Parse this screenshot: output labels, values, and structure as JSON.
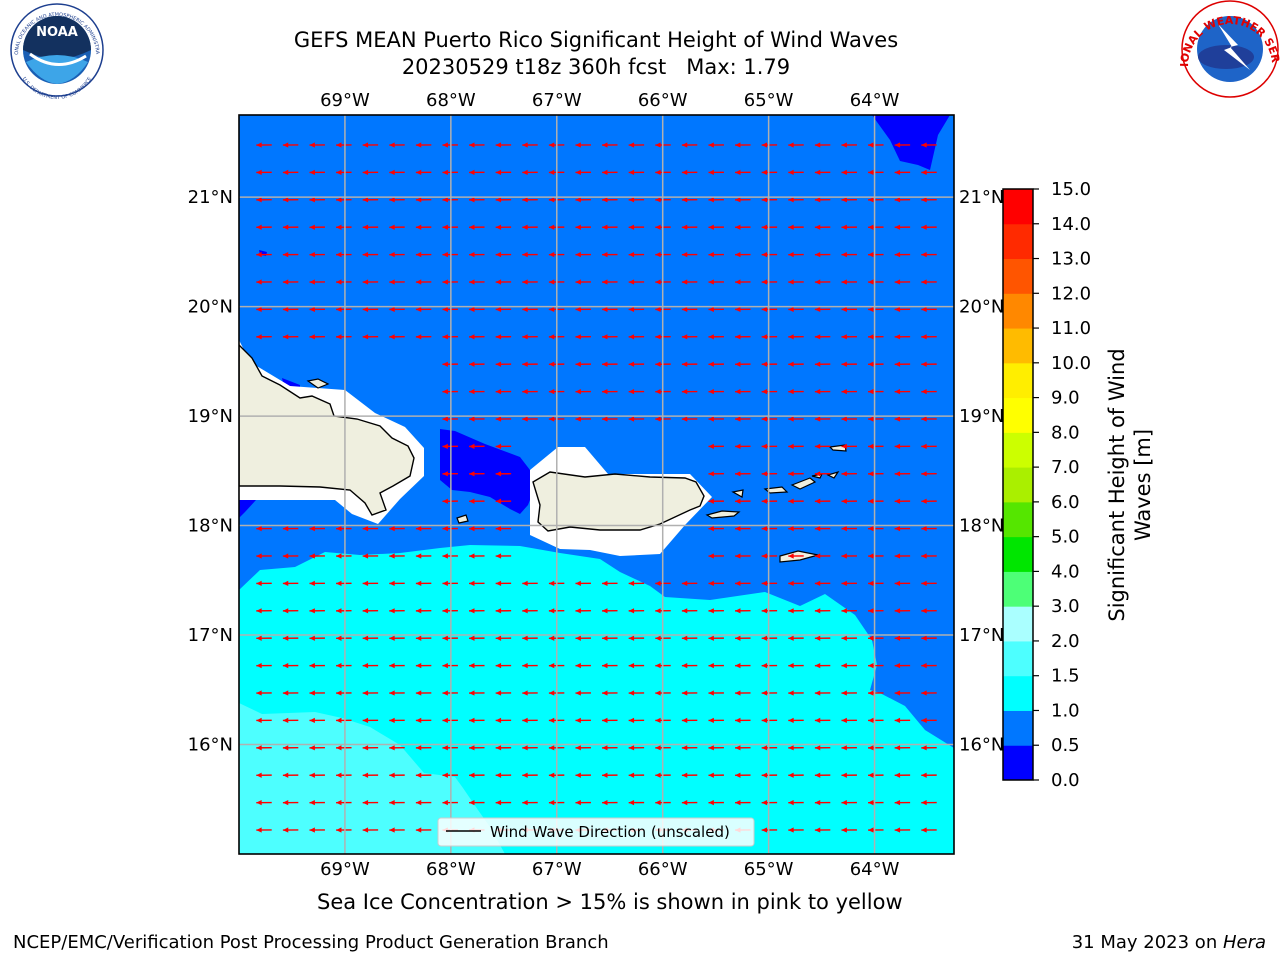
{
  "title": {
    "line1": "GEFS MEAN Puerto Rico Significant Height of Wind Waves",
    "line2": "20230529 t18z 360h fcst   Max: 1.79"
  },
  "map": {
    "lon_range": [
      -70.0,
      -63.25
    ],
    "lat_range": [
      15.0,
      21.75
    ],
    "lon_ticks": [
      {
        "value": -69,
        "label": "69°W"
      },
      {
        "value": -68,
        "label": "68°W"
      },
      {
        "value": -67,
        "label": "67°W"
      },
      {
        "value": -66,
        "label": "66°W"
      },
      {
        "value": -65,
        "label": "65°W"
      },
      {
        "value": -64,
        "label": "64°W"
      }
    ],
    "lat_ticks": [
      {
        "value": 21,
        "label": "21°N"
      },
      {
        "value": 20,
        "label": "20°N"
      },
      {
        "value": 19,
        "label": "19°N"
      },
      {
        "value": 18,
        "label": "18°N"
      },
      {
        "value": 17,
        "label": "17°N"
      },
      {
        "value": 16,
        "label": "16°N"
      }
    ],
    "wind_direction_deg_from": 75,
    "grid": true,
    "legend_label": "Wind Wave Direction (unscaled)",
    "legend_position": "bottom-center"
  },
  "colors": {
    "band_0_0_5": "#0000ff",
    "band_0_5_1_0": "#0077ff",
    "band_1_0_1_5": "#00ffff",
    "band_1_5_2_0": "#4dffff",
    "land": "#efefdf",
    "arrow": "#ff0000"
  },
  "colorbar": {
    "title_line1": "Significant Height of Wind",
    "title_line2": "Waves [m]",
    "boundaries": [
      "0.0",
      "0.5",
      "1.0",
      "1.5",
      "2.0",
      "3.0",
      "4.0",
      "5.0",
      "6.0",
      "7.0",
      "8.0",
      "9.0",
      "10.0",
      "11.0",
      "12.0",
      "13.0",
      "14.0",
      "15.0"
    ],
    "colors": [
      "#0000ff",
      "#0077ff",
      "#00ffff",
      "#4dffff",
      "#aaffff",
      "#4dff77",
      "#00e600",
      "#55e600",
      "#aaef00",
      "#ccff00",
      "#ffff00",
      "#ffee00",
      "#ffbb00",
      "#ff8800",
      "#ff5500",
      "#ff2a00",
      "#ff0000"
    ]
  },
  "notes": {
    "ice": "Sea Ice Concentration > 15% is shown in pink to yellow"
  },
  "footer": {
    "left": "NCEP/EMC/Verification Post Processing Product Generation Branch",
    "date": "31 May 2023 on ",
    "machine": "Hera"
  },
  "logos": {
    "noaa": "NOAA",
    "noaa_ring_top": "NATIONAL OCEANIC AND ATMOSPHERIC ADMINISTRATION",
    "noaa_ring_bottom": "U.S. DEPARTMENT OF COMMERCE",
    "nws_ring": "NATIONAL WEATHER SERVICE"
  }
}
